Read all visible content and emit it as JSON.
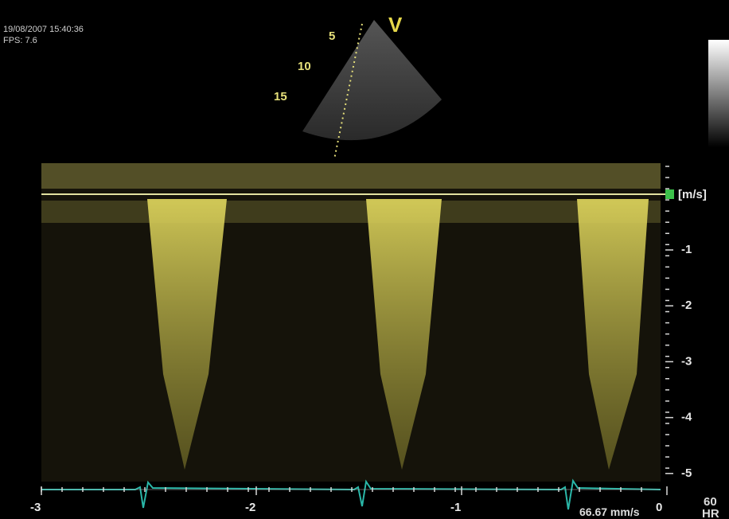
{
  "header": {
    "timestamp": "19/08/2007 15:40:36",
    "fps": "FPS: 7.6"
  },
  "sector": {
    "label": "V",
    "depth_marks": [
      "5",
      "10",
      "15"
    ]
  },
  "spectrum": {
    "unit": "[m/s]",
    "velocity_ticks": [
      "-1",
      "-2",
      "-3",
      "-4",
      "-5"
    ],
    "time_ticks": [
      "-3",
      "-2",
      "-1",
      "0"
    ],
    "sweep_speed": "66.67 mm/s"
  },
  "heart_rate": {
    "value": "60",
    "label": "HR"
  }
}
